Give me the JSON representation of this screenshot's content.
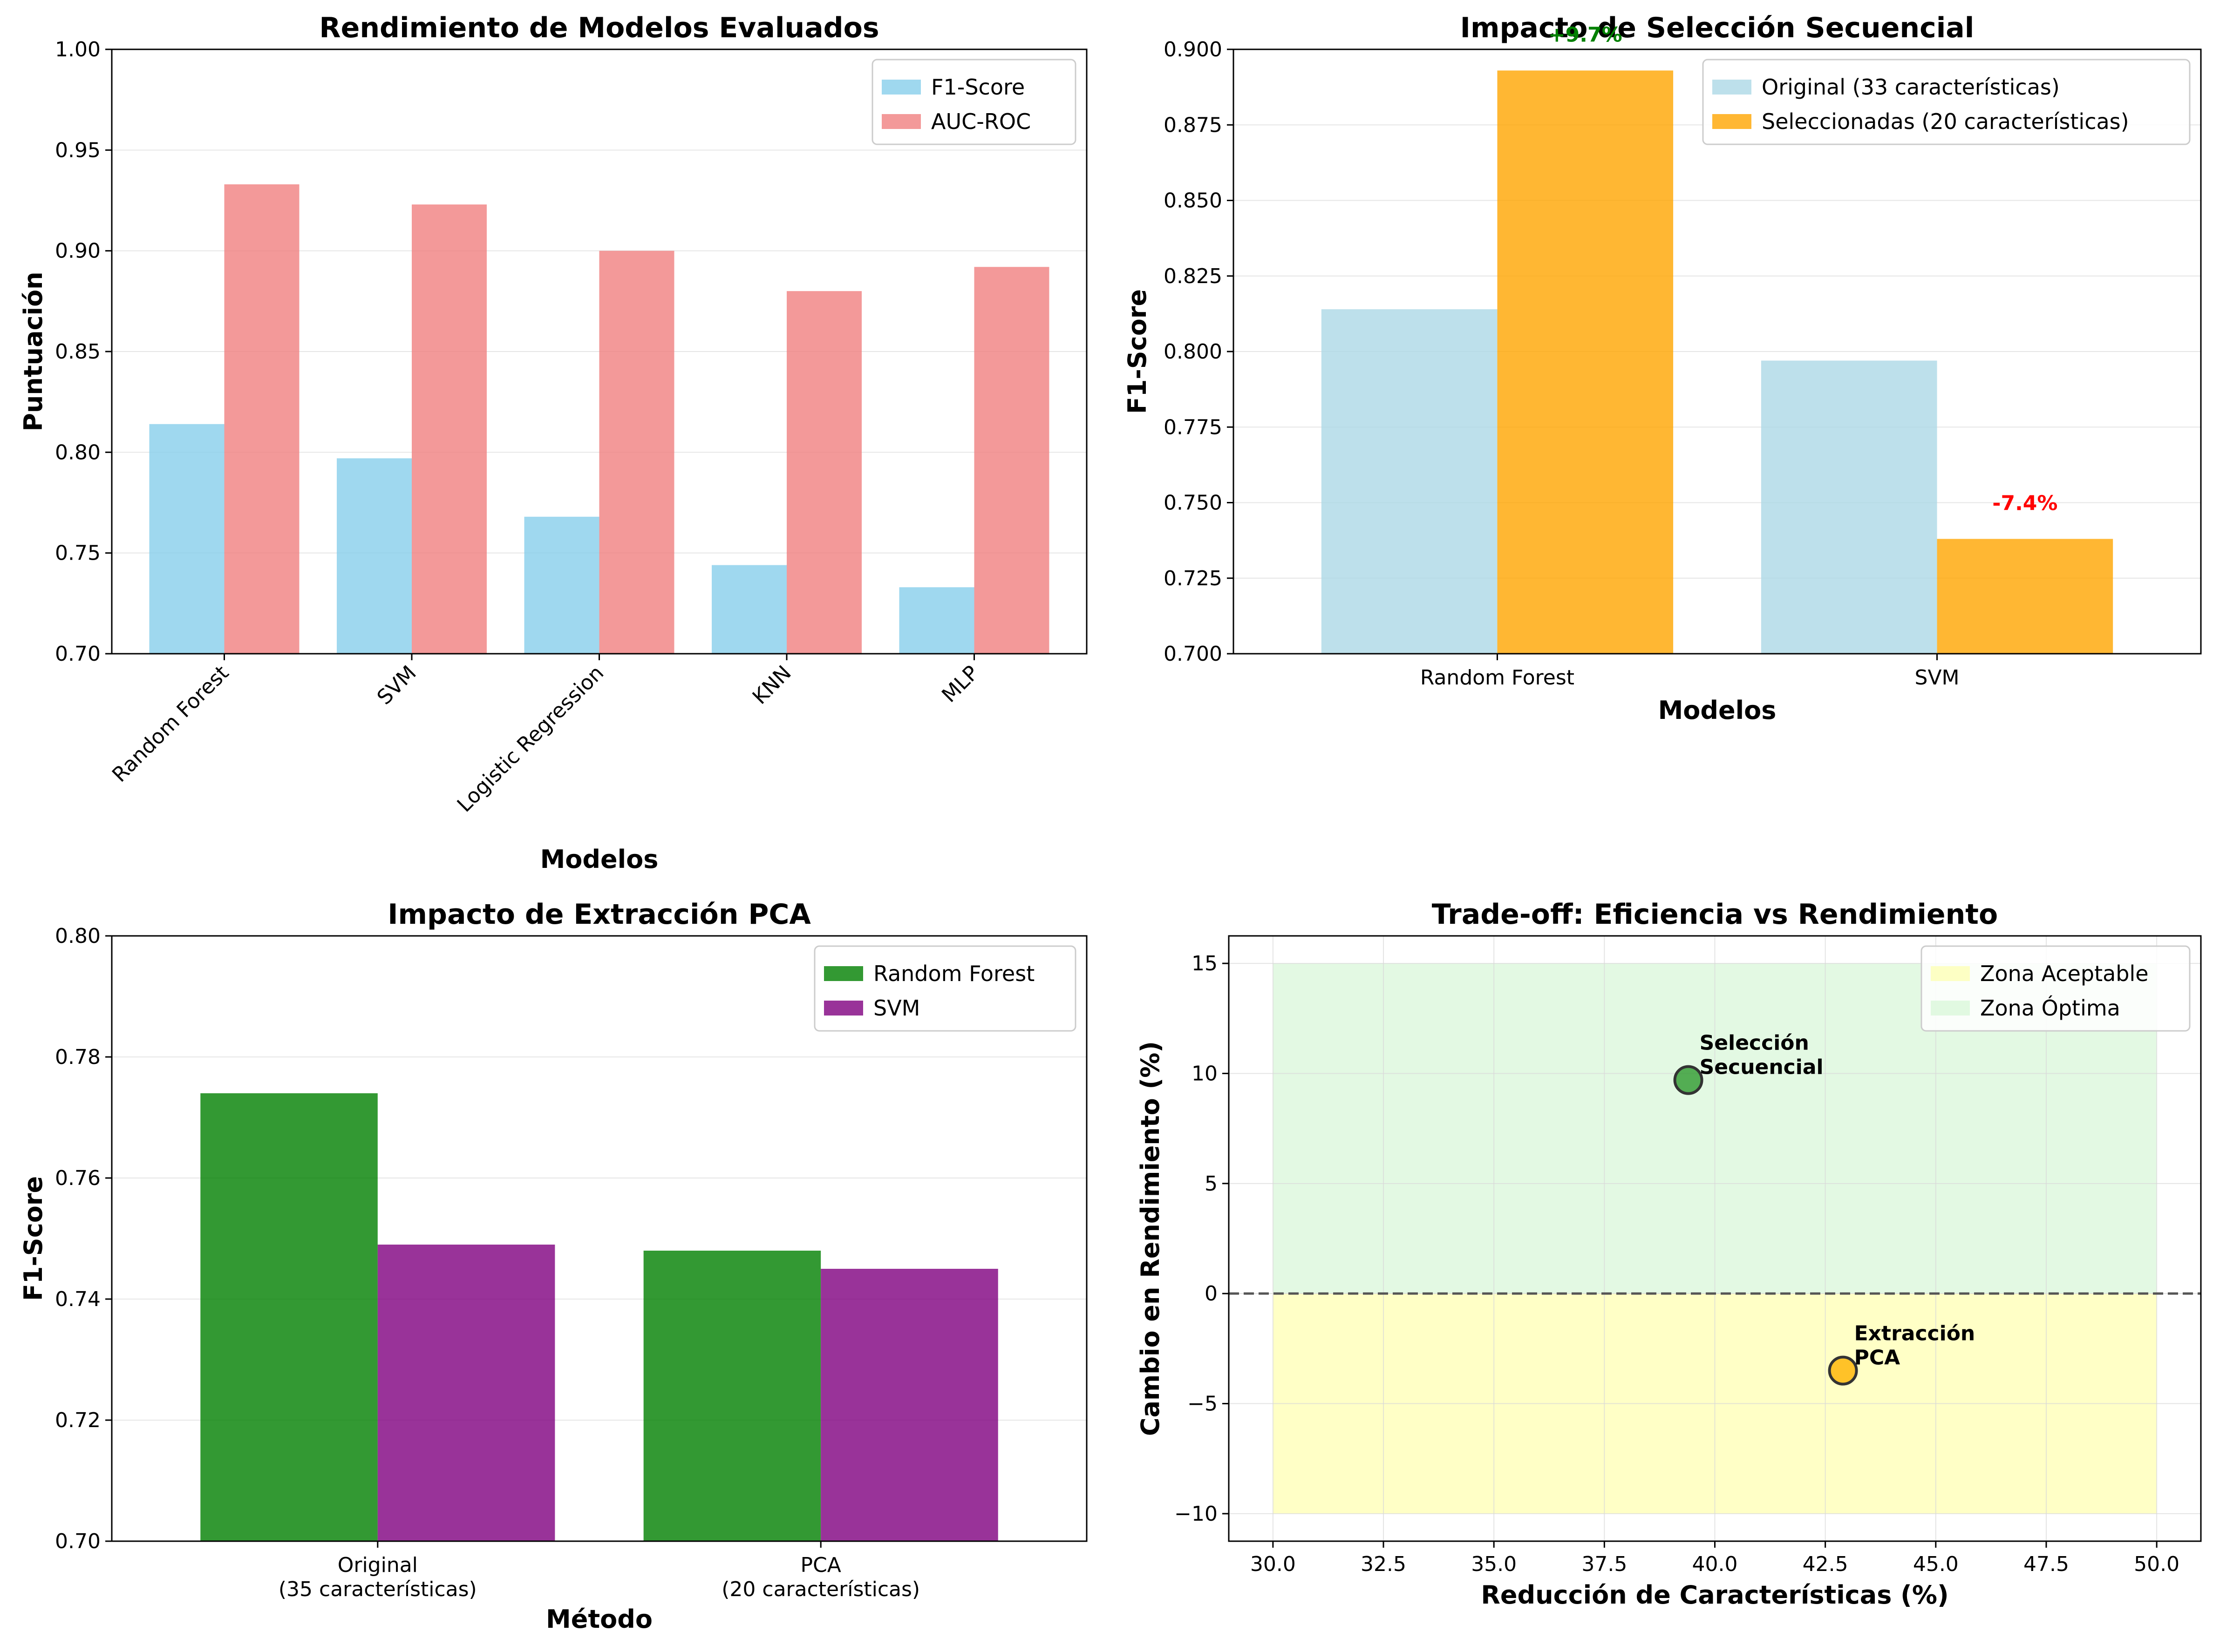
{
  "chart_data": [
    {
      "type": "bar",
      "title": "Rendimiento de Modelos Evaluados",
      "xlabel": "Modelos",
      "ylabel": "Puntuación",
      "categories": [
        "Random Forest",
        "SVM",
        "Logistic Regression",
        "KNN",
        "MLP"
      ],
      "series": [
        {
          "name": "F1-Score",
          "values": [
            0.814,
            0.797,
            0.768,
            0.744,
            0.733
          ],
          "color": "#87ceeb"
        },
        {
          "name": "AUC-ROC",
          "values": [
            0.933,
            0.923,
            0.9,
            0.88,
            0.892
          ],
          "color": "#f08080"
        }
      ],
      "ylim": [
        0.7,
        1.0
      ],
      "yticks": [
        "0.70",
        "0.75",
        "0.80",
        "0.85",
        "0.90",
        "0.95",
        "1.00"
      ],
      "grid": "y",
      "legend": "top-right",
      "xtick_rotation": "45"
    },
    {
      "type": "bar",
      "title": "Impacto de Selección Secuencial",
      "xlabel": "Modelos",
      "ylabel": "F1-Score",
      "categories": [
        "Random Forest",
        "SVM"
      ],
      "series": [
        {
          "name": "Original (33 características)",
          "values": [
            0.814,
            0.797
          ],
          "color": "#add8e6"
        },
        {
          "name": "Seleccionadas (20 características)",
          "values": [
            0.893,
            0.738
          ],
          "color": "#ffa500"
        }
      ],
      "annotations": [
        {
          "text": "+9.7%",
          "category": "Random Forest",
          "color": "#008000"
        },
        {
          "text": "-7.4%",
          "category": "SVM",
          "color": "#ff0000"
        }
      ],
      "ylim": [
        0.7,
        0.9
      ],
      "yticks": [
        "0.700",
        "0.725",
        "0.750",
        "0.775",
        "0.800",
        "0.825",
        "0.850",
        "0.875",
        "0.900"
      ],
      "grid": "y",
      "legend": "top-right"
    },
    {
      "type": "bar",
      "title": "Impacto de Extracción PCA",
      "xlabel": "Método",
      "ylabel": "F1-Score",
      "categories": [
        "Original\n(35 características)",
        "PCA\n(20 características)"
      ],
      "series": [
        {
          "name": "Random Forest",
          "values": [
            0.774,
            0.748
          ],
          "color": "#008000"
        },
        {
          "name": "SVM",
          "values": [
            0.749,
            0.745
          ],
          "color": "#800080"
        }
      ],
      "ylim": [
        0.7,
        0.8
      ],
      "yticks": [
        "0.70",
        "0.72",
        "0.74",
        "0.76",
        "0.78",
        "0.80"
      ],
      "grid": "y",
      "legend": "top-right"
    },
    {
      "type": "scatter",
      "title": "Trade-off: Eficiencia vs Rendimiento",
      "xlabel": "Reducción de Características (%)",
      "ylabel": "Cambio en Rendimiento (%)",
      "points": [
        {
          "label": "Selección\nSecuencial",
          "x": 39.4,
          "y": 9.7,
          "color": "#2e9a2e"
        },
        {
          "label": "Extracción\nPCA",
          "x": 42.9,
          "y": -3.5,
          "color": "#ffb300"
        }
      ],
      "zones": [
        {
          "name": "Zona Aceptable",
          "x": [
            30,
            50
          ],
          "y": [
            -10,
            0
          ],
          "color": "#ffffa0"
        },
        {
          "name": "Zona Óptima",
          "x": [
            30,
            50
          ],
          "y": [
            0,
            15
          ],
          "color": "#d0f5d0"
        }
      ],
      "reference_line_y": 0,
      "xlim": [
        29.0,
        51.0
      ],
      "ylim": [
        -11.25,
        16.25
      ],
      "xticks": [
        "30.0",
        "32.5",
        "35.0",
        "37.5",
        "40.0",
        "42.5",
        "45.0",
        "47.5",
        "50.0"
      ],
      "yticks": [
        "-10",
        "-5",
        "0",
        "5",
        "10",
        "15"
      ],
      "grid": "both",
      "legend": "top-right"
    }
  ]
}
